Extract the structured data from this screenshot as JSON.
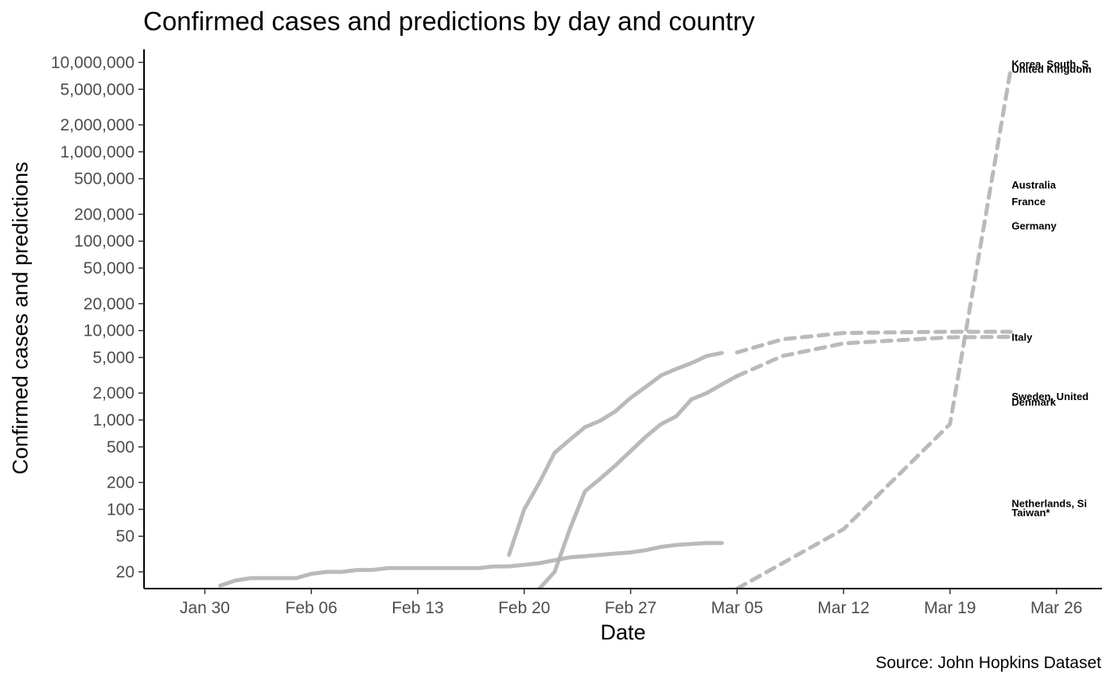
{
  "chart_data": {
    "type": "line",
    "title": "Confirmed cases and predictions by day and country",
    "xlabel": "Date",
    "ylabel": "Confirmed cases and predictions",
    "caption": "Source: John Hopkins Dataset",
    "x_scale": "date",
    "y_scale": "log10",
    "xlim": [
      "2020-01-26",
      "2020-03-29"
    ],
    "ylim": [
      13,
      14000000
    ],
    "x_ticks": [
      {
        "date": "2020-01-30",
        "label": "Jan 30"
      },
      {
        "date": "2020-02-06",
        "label": "Feb 06"
      },
      {
        "date": "2020-02-13",
        "label": "Feb 13"
      },
      {
        "date": "2020-02-20",
        "label": "Feb 20"
      },
      {
        "date": "2020-02-27",
        "label": "Feb 27"
      },
      {
        "date": "2020-03-05",
        "label": "Mar 05"
      },
      {
        "date": "2020-03-12",
        "label": "Mar 12"
      },
      {
        "date": "2020-03-19",
        "label": "Mar 19"
      },
      {
        "date": "2020-03-26",
        "label": "Mar 26"
      }
    ],
    "y_ticks": [
      {
        "value": 20,
        "label": "20"
      },
      {
        "value": 50,
        "label": "50"
      },
      {
        "value": 100,
        "label": "100"
      },
      {
        "value": 200,
        "label": "200"
      },
      {
        "value": 500,
        "label": "500"
      },
      {
        "value": 1000,
        "label": "1,000"
      },
      {
        "value": 2000,
        "label": "2,000"
      },
      {
        "value": 5000,
        "label": "5,000"
      },
      {
        "value": 10000,
        "label": "10,000"
      },
      {
        "value": 20000,
        "label": "20,000"
      },
      {
        "value": 50000,
        "label": "50,000"
      },
      {
        "value": 100000,
        "label": "100,000"
      },
      {
        "value": 200000,
        "label": "200,000"
      },
      {
        "value": 500000,
        "label": "500,000"
      },
      {
        "value": 1000000,
        "label": "1,000,000"
      },
      {
        "value": 2000000,
        "label": "2,000,000"
      },
      {
        "value": 5000000,
        "label": "5,000,000"
      },
      {
        "value": 10000000,
        "label": "10,000,000"
      }
    ],
    "grid": false,
    "legend": "none",
    "line_color": "#b3b3b3",
    "end_labels": [
      {
        "text": "United Kingdom",
        "value": 8500000
      },
      {
        "text": "Australia",
        "value": 430000
      },
      {
        "text": "France",
        "value": 280000
      },
      {
        "text": "Germany",
        "value": 150000
      },
      {
        "text": "Korea, South, S",
        "value": 9700000
      },
      {
        "text": "Italy",
        "value": 8500
      },
      {
        "text": "Sweden, United",
        "value": 1850
      },
      {
        "text": "Denmark",
        "value": 1600
      },
      {
        "text": "Netherlands, Si",
        "value": 118
      },
      {
        "text": "Taiwan*",
        "value": 93
      }
    ],
    "observed_series": [
      {
        "points": [
          [
            "2020-02-21",
            13
          ],
          [
            "2020-02-22",
            20
          ],
          [
            "2020-02-23",
            60
          ],
          [
            "2020-02-24",
            160
          ],
          [
            "2020-02-25",
            220
          ],
          [
            "2020-02-26",
            310
          ],
          [
            "2020-02-27",
            450
          ],
          [
            "2020-02-28",
            650
          ],
          [
            "2020-02-29",
            900
          ],
          [
            "2020-03-01",
            1100
          ],
          [
            "2020-03-02",
            1700
          ],
          [
            "2020-03-03",
            2000
          ],
          [
            "2020-03-04",
            2500
          ],
          [
            "2020-03-05",
            3100
          ]
        ]
      },
      {
        "points": [
          [
            "2020-02-19",
            31
          ],
          [
            "2020-02-20",
            100
          ],
          [
            "2020-02-21",
            200
          ],
          [
            "2020-02-22",
            430
          ],
          [
            "2020-02-23",
            600
          ],
          [
            "2020-02-24",
            830
          ],
          [
            "2020-02-25",
            980
          ],
          [
            "2020-02-26",
            1250
          ],
          [
            "2020-02-27",
            1770
          ],
          [
            "2020-02-28",
            2350
          ],
          [
            "2020-02-29",
            3150
          ],
          [
            "2020-03-01",
            3730
          ],
          [
            "2020-03-02",
            4330
          ],
          [
            "2020-03-03",
            5190
          ],
          [
            "2020-03-04",
            5620
          ]
        ]
      },
      {
        "points": [
          [
            "2020-01-31",
            14
          ],
          [
            "2020-02-01",
            16
          ],
          [
            "2020-02-02",
            17
          ],
          [
            "2020-02-03",
            17
          ],
          [
            "2020-02-04",
            17
          ],
          [
            "2020-02-05",
            17
          ],
          [
            "2020-02-06",
            19
          ],
          [
            "2020-02-07",
            20
          ],
          [
            "2020-02-08",
            20
          ],
          [
            "2020-02-09",
            21
          ],
          [
            "2020-02-10",
            21
          ],
          [
            "2020-02-11",
            22
          ],
          [
            "2020-02-12",
            22
          ],
          [
            "2020-02-13",
            22
          ],
          [
            "2020-02-14",
            22
          ],
          [
            "2020-02-15",
            22
          ],
          [
            "2020-02-16",
            22
          ],
          [
            "2020-02-17",
            22
          ],
          [
            "2020-02-18",
            23
          ],
          [
            "2020-02-19",
            23
          ],
          [
            "2020-02-20",
            24
          ],
          [
            "2020-02-21",
            25
          ],
          [
            "2020-02-22",
            27
          ],
          [
            "2020-02-23",
            29
          ],
          [
            "2020-02-24",
            30
          ],
          [
            "2020-02-25",
            31
          ],
          [
            "2020-02-26",
            32
          ],
          [
            "2020-02-27",
            33
          ],
          [
            "2020-02-28",
            35
          ],
          [
            "2020-02-29",
            38
          ],
          [
            "2020-03-01",
            40
          ],
          [
            "2020-03-02",
            41
          ],
          [
            "2020-03-03",
            42
          ],
          [
            "2020-03-04",
            42
          ]
        ]
      }
    ],
    "prediction_series": [
      {
        "points": [
          [
            "2020-03-05",
            13
          ],
          [
            "2020-03-12",
            60
          ],
          [
            "2020-03-19",
            900
          ],
          [
            "2020-03-23",
            8500000
          ]
        ]
      },
      {
        "points": [
          [
            "2020-03-05",
            5700
          ],
          [
            "2020-03-08",
            8000
          ],
          [
            "2020-03-12",
            9400
          ],
          [
            "2020-03-19",
            9700
          ],
          [
            "2020-03-23",
            9700
          ]
        ]
      },
      {
        "points": [
          [
            "2020-03-05",
            3100
          ],
          [
            "2020-03-08",
            5200
          ],
          [
            "2020-03-12",
            7200
          ],
          [
            "2020-03-19",
            8400
          ],
          [
            "2020-03-23",
            8500
          ]
        ]
      }
    ]
  }
}
